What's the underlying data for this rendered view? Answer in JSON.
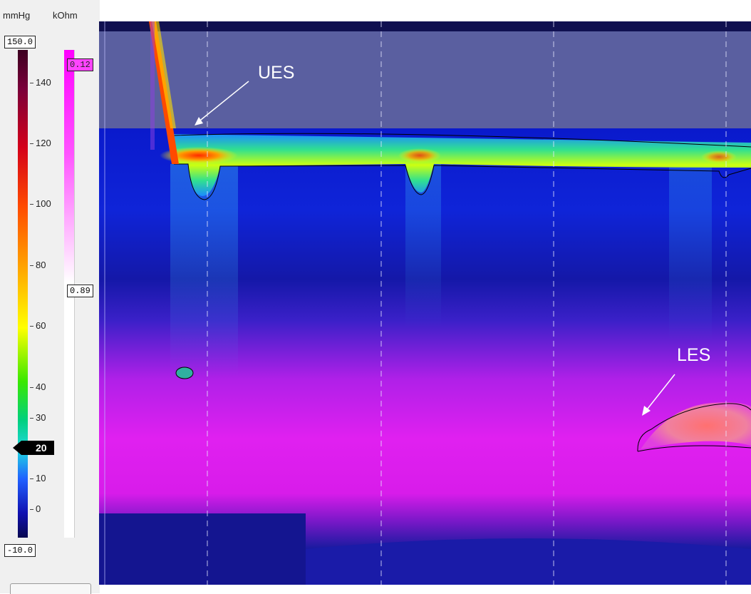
{
  "units": {
    "pressure": "mmHg",
    "impedance": "kOhm"
  },
  "pressure_scale": {
    "max_label": "150.0",
    "min_label": "-10.0",
    "ticks": [
      "140",
      "120",
      "100",
      "80",
      "60",
      "40",
      "30",
      "10",
      "0"
    ],
    "marker_label": "20"
  },
  "impedance_scale": {
    "top_label": "0.12",
    "bottom_label": "0.89"
  },
  "annotations": {
    "ues": "UES",
    "les": "LES"
  },
  "colors": {
    "background_band": "#5a5fa0",
    "contour": "#000000",
    "impedance_magenta": "#ff00ff",
    "annotation": "#ffffff"
  }
}
